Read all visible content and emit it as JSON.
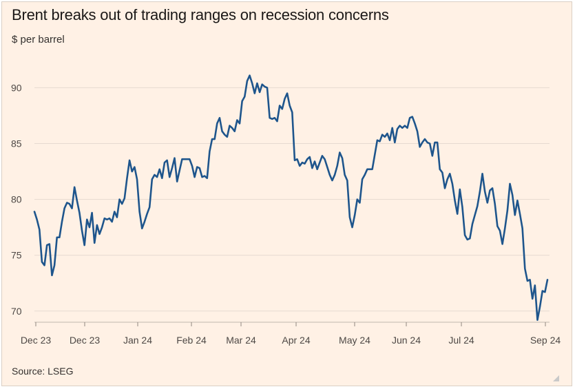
{
  "title": "Brent breaks out of trading ranges on recession concerns",
  "subtitle": "$ per barrel",
  "source": "Source: LSEG",
  "colors": {
    "background": "#fff1e5",
    "line": "#1e558c",
    "grid": "#e6dad0",
    "text": "#33302e"
  },
  "chart_data": {
    "type": "line",
    "title": "Brent breaks out of trading ranges on recession concerns",
    "ylabel": "$ per barrel",
    "xlabel": "",
    "ylim": [
      69,
      92
    ],
    "yticks": [
      70,
      75,
      80,
      85,
      90
    ],
    "x_tick_labels": [
      "Dec 23",
      "Dec 23",
      "Jan 24",
      "Feb 24",
      "Mar 24",
      "Apr 24",
      "May 24",
      "Jun 24",
      "Jul 24",
      "Sep 24"
    ],
    "grid": "horizontal",
    "legend": "none",
    "series": [
      {
        "values": [
          78.9,
          78.2,
          77.3,
          74.4,
          74.1,
          75.9,
          76.0,
          73.2,
          74.1,
          76.6,
          76.6,
          78.0,
          79.2,
          79.7,
          79.6,
          79.2,
          81.1,
          79.9,
          78.8,
          77.2,
          75.9,
          78.2,
          77.5,
          78.8,
          76.1,
          77.7,
          76.9,
          77.5,
          78.3,
          78.2,
          78.3,
          78.0,
          78.9,
          78.4,
          80.0,
          79.6,
          80.1,
          81.9,
          83.5,
          82.5,
          82.9,
          81.8,
          78.9,
          77.4,
          78.0,
          78.7,
          79.3,
          81.8,
          82.2,
          82.0,
          82.7,
          81.9,
          83.3,
          83.5,
          82.0,
          82.8,
          83.7,
          81.6,
          82.6,
          83.6,
          83.6,
          83.6,
          83.6,
          83.0,
          82.0,
          82.9,
          82.8,
          82.0,
          82.1,
          81.9,
          84.3,
          85.4,
          85.4,
          86.8,
          87.3,
          86.1,
          85.8,
          85.6,
          86.6,
          86.4,
          86.1,
          87.1,
          86.8,
          88.8,
          89.2,
          90.6,
          91.1,
          90.4,
          89.5,
          90.4,
          89.6,
          90.3,
          90.1,
          90.0,
          87.3,
          87.2,
          87.3,
          87.0,
          88.4,
          88.1,
          89.0,
          89.5,
          88.4,
          87.8,
          83.5,
          83.6,
          83.0,
          83.3,
          83.2,
          83.6,
          83.8,
          82.8,
          83.4,
          82.7,
          83.3,
          83.9,
          83.6,
          82.9,
          82.2,
          81.7,
          82.2,
          83.0,
          84.2,
          83.7,
          82.2,
          81.7,
          78.4,
          77.5,
          78.6,
          80.0,
          79.7,
          81.8,
          82.2,
          82.7,
          82.7,
          82.7,
          84.0,
          85.3,
          85.2,
          85.8,
          85.6,
          85.9,
          85.3,
          86.4,
          85.1,
          86.3,
          86.6,
          86.4,
          86.6,
          86.4,
          87.3,
          87.4,
          86.8,
          86.1,
          84.7,
          85.1,
          85.4,
          85.1,
          85.0,
          83.9,
          85.1,
          85.1,
          82.7,
          82.4,
          81.0,
          81.8,
          82.3,
          81.4,
          79.9,
          78.7,
          80.9,
          79.3,
          76.8,
          76.4,
          76.5,
          77.8,
          78.6,
          79.4,
          80.7,
          82.3,
          80.7,
          79.7,
          80.8,
          81.0,
          79.6,
          77.6,
          77.2,
          76.0,
          77.4,
          79.0,
          81.4,
          80.4,
          78.6,
          79.9,
          78.7,
          77.4,
          73.8,
          72.7,
          72.8,
          71.1,
          72.3,
          69.2,
          70.4,
          71.8,
          71.7,
          72.8
        ]
      }
    ]
  }
}
